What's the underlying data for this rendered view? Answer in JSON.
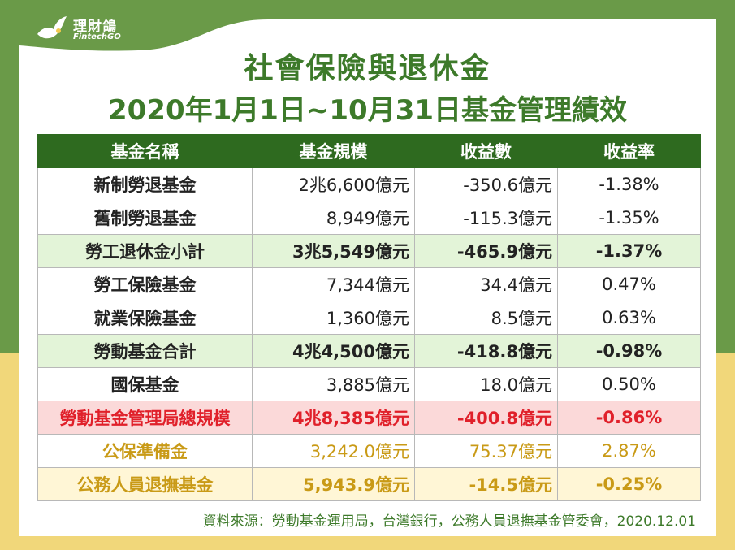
{
  "logo": {
    "title": "理財鴿",
    "subtitle": "FintechGO"
  },
  "colors": {
    "header_green": "#2e6a1f",
    "title_green": "#3d7a2a",
    "highlight_green": "#e3f4d8",
    "highlight_red": "#fbd9d9",
    "red_text": "#e0202a",
    "gold_text": "#c99a16"
  },
  "title_line1": "社會保險與退休金",
  "title_line2": "2020年1月1日~10月31日基金管理績效",
  "table": {
    "headers": [
      "基金名稱",
      "基金規模",
      "收益數",
      "收益率"
    ],
    "rows": [
      [
        "新制勞退基金",
        "2兆6,600億元",
        "-350.6億元",
        "-1.38%"
      ],
      [
        "舊制勞退基金",
        "8,949億元",
        "-115.3億元",
        "-1.35%"
      ],
      [
        "勞工退休金小計",
        "3兆5,549億元",
        "-465.9億元",
        "-1.37%"
      ],
      [
        "勞工保險基金",
        "7,344億元",
        "34.4億元",
        "0.47%"
      ],
      [
        "就業保險基金",
        "1,360億元",
        "8.5億元",
        "0.63%"
      ],
      [
        "勞動基金合計",
        "4兆4,500億元",
        "-418.8億元",
        "-0.98%"
      ],
      [
        "國保基金",
        "3,885億元",
        "18.0億元",
        "0.50%"
      ],
      [
        "勞動基金管理局總規模",
        "4兆8,385億元",
        "-400.8億元",
        "-0.86%"
      ],
      [
        "公保準備金",
        "3,242.0億元",
        "75.37億元",
        "2.87%"
      ],
      [
        "公務人員退撫基金",
        "5,943.9億元",
        "-14.5億元",
        "-0.25%"
      ]
    ]
  },
  "source": "資料來源：勞動基金運用局，台灣銀行，公務人員退撫基金管委會，2020.12.01"
}
